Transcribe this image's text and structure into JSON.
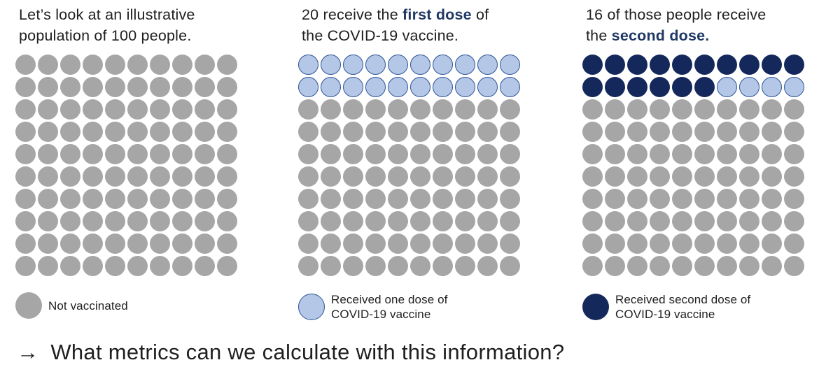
{
  "colors": {
    "not_vaccinated": "#A6A6A6",
    "one_dose_fill": "#B4C7E7",
    "one_dose_border": "#2F5597",
    "second_dose": "#15285C",
    "accent_text": "#1F3864",
    "body_text": "#1F1F1F"
  },
  "panels": [
    {
      "name": "population",
      "header_lines": [
        [
          {
            "text": "Let’s look at an illustrative",
            "bold": false
          }
        ],
        [
          {
            "text": "population of 100 people.",
            "bold": false
          }
        ]
      ],
      "cells": [
        {
          "state": "not_vaccinated",
          "count": 100
        }
      ],
      "legend": {
        "swatch": "not_vaccinated",
        "lines": [
          "Not vaccinated"
        ]
      }
    },
    {
      "name": "first-dose",
      "header_lines": [
        [
          {
            "text": "20 receive the ",
            "bold": false
          },
          {
            "text": "first dose",
            "bold": true
          },
          {
            "text": " of",
            "bold": false
          }
        ],
        [
          {
            "text": "the COVID-19 vaccine.",
            "bold": false
          }
        ]
      ],
      "cells": [
        {
          "state": "one_dose",
          "count": 20
        },
        {
          "state": "not_vaccinated",
          "count": 80
        }
      ],
      "legend": {
        "swatch": "one_dose",
        "lines": [
          "Received one dose of",
          "COVID-19 vaccine"
        ]
      }
    },
    {
      "name": "second-dose",
      "header_lines": [
        [
          {
            "text": "16 of those people receive",
            "bold": false
          }
        ],
        [
          {
            "text": "the ",
            "bold": false
          },
          {
            "text": "second dose.",
            "bold": true
          }
        ]
      ],
      "cells": [
        {
          "state": "second_dose",
          "count": 16
        },
        {
          "state": "one_dose",
          "count": 4
        },
        {
          "state": "not_vaccinated",
          "count": 80
        }
      ],
      "legend": {
        "swatch": "second_dose",
        "lines": [
          "Received second dose of",
          "COVID-19 vaccine"
        ]
      }
    }
  ],
  "question": {
    "arrow": "→",
    "text": "What metrics can we calculate with this information?"
  },
  "chart_data": [
    {
      "type": "waffle",
      "title": "Let’s look at an illustrative population of 100 people.",
      "rows": 10,
      "cols": 10,
      "total": 100,
      "fill_order": "left-to-right, top-to-bottom",
      "series": [
        {
          "name": "Not vaccinated",
          "value": 100,
          "color": "#A6A6A6"
        }
      ]
    },
    {
      "type": "waffle",
      "title": "20 receive the first dose of the COVID-19 vaccine.",
      "rows": 10,
      "cols": 10,
      "total": 100,
      "fill_order": "left-to-right, top-to-bottom",
      "series": [
        {
          "name": "Received one dose of COVID-19 vaccine",
          "value": 20,
          "color": "#B4C7E7"
        },
        {
          "name": "Not vaccinated",
          "value": 80,
          "color": "#A6A6A6"
        }
      ]
    },
    {
      "type": "waffle",
      "title": "16 of those people receive the second dose.",
      "rows": 10,
      "cols": 10,
      "total": 100,
      "fill_order": "left-to-right, top-to-bottom",
      "series": [
        {
          "name": "Received second dose of COVID-19 vaccine",
          "value": 16,
          "color": "#15285C"
        },
        {
          "name": "Received one dose of COVID-19 vaccine",
          "value": 4,
          "color": "#B4C7E7"
        },
        {
          "name": "Not vaccinated",
          "value": 80,
          "color": "#A6A6A6"
        }
      ]
    }
  ]
}
